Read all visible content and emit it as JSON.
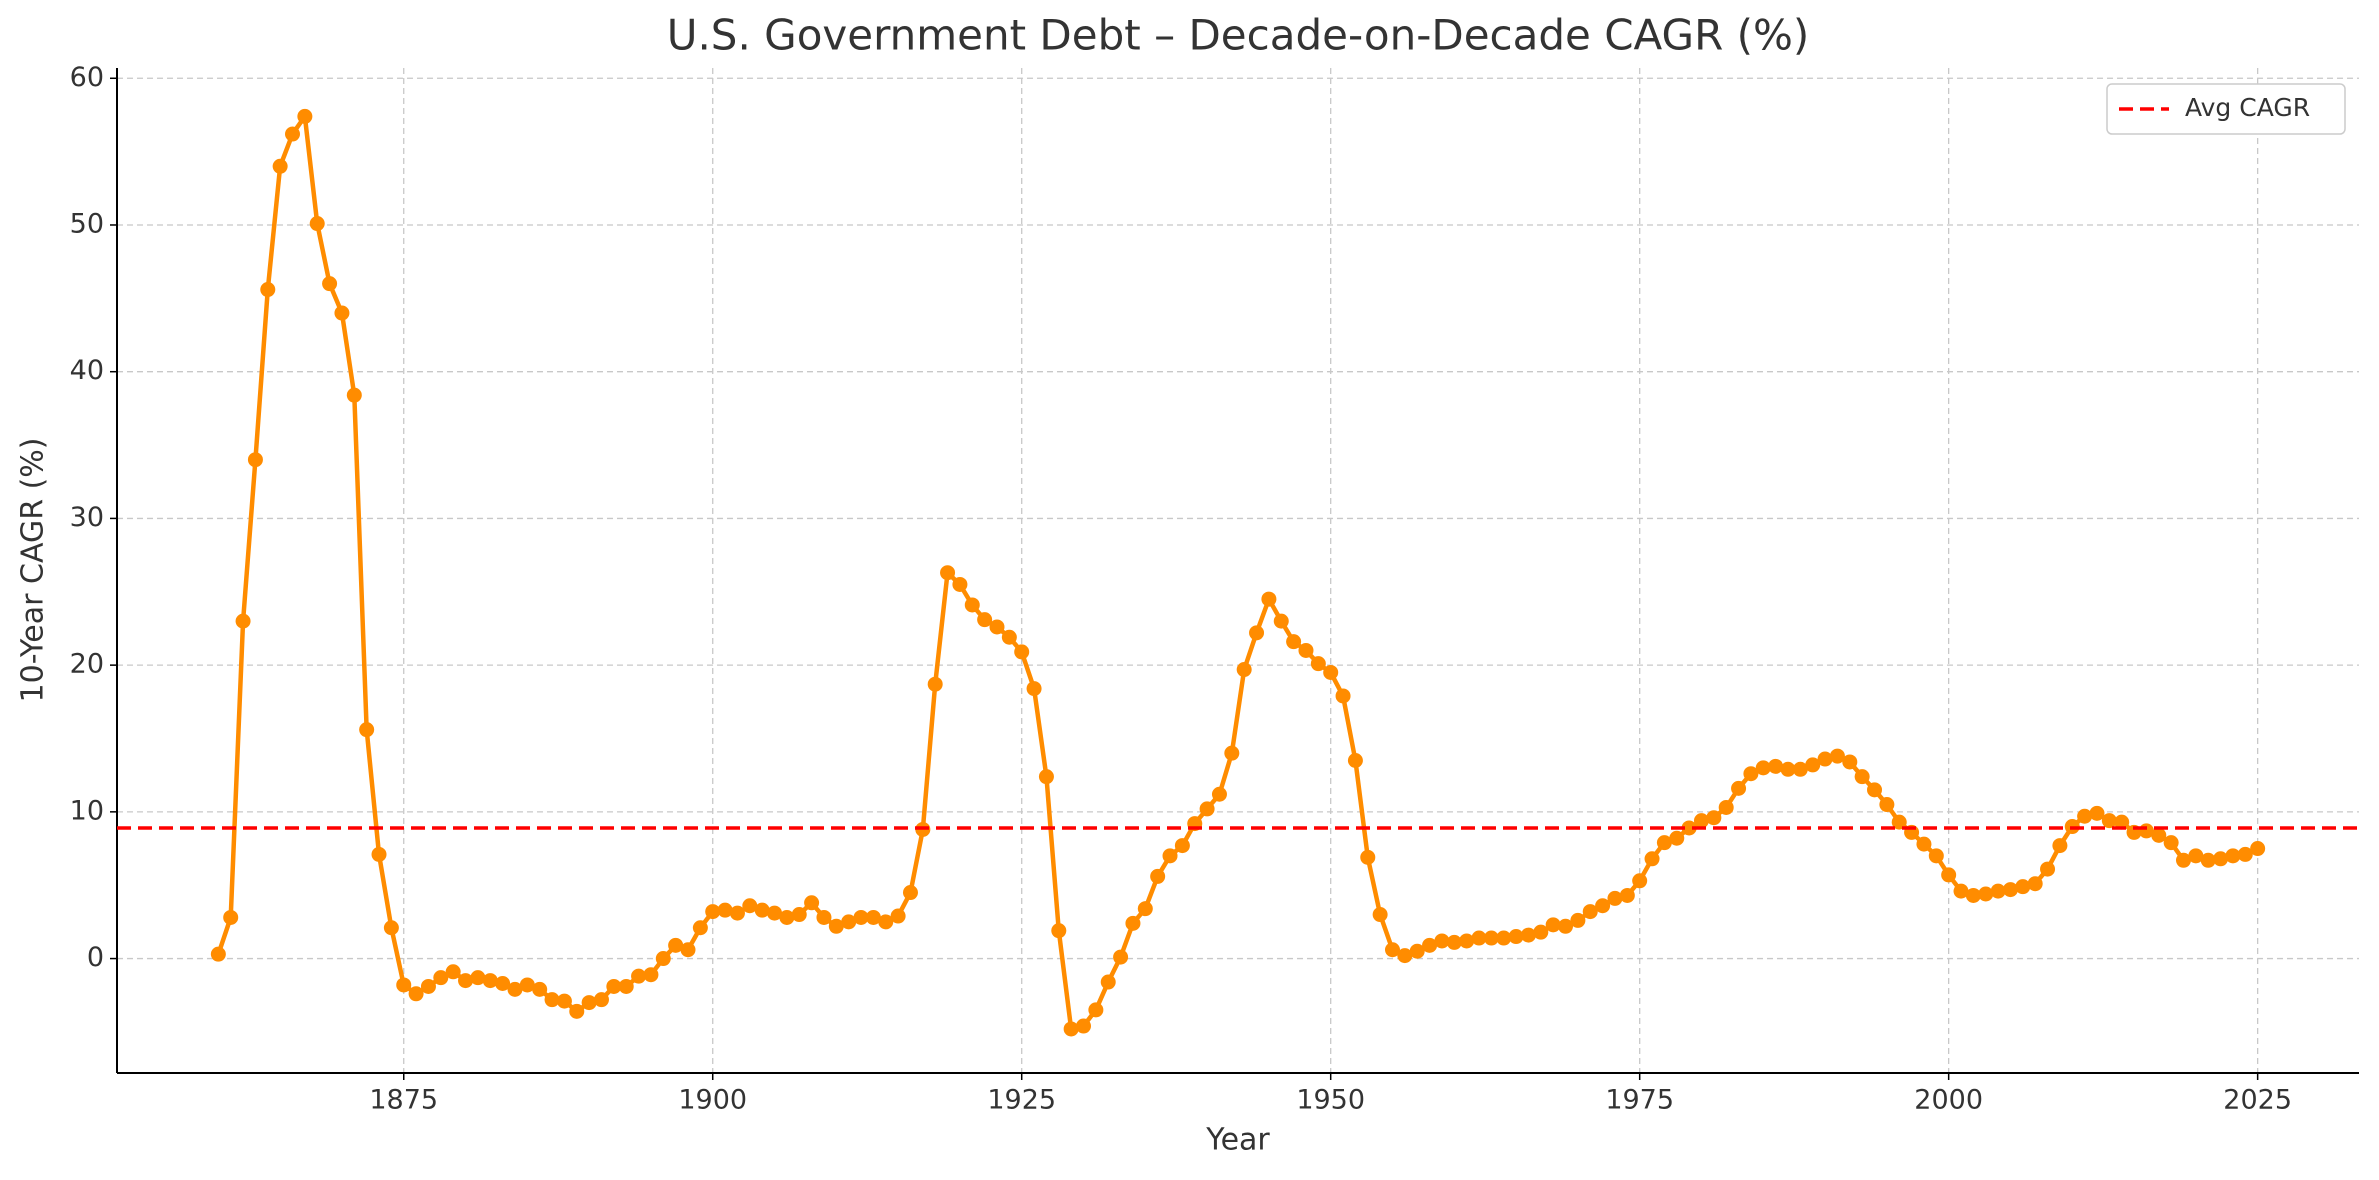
{
  "chart_data": {
    "type": "line",
    "title": "U.S. Government Debt – Decade-on-Decade CAGR (%)",
    "x_label": "Year",
    "y_label": "10-Year CAGR (%)",
    "x": [
      1860,
      1861,
      1862,
      1863,
      1864,
      1865,
      1866,
      1867,
      1868,
      1869,
      1870,
      1871,
      1872,
      1873,
      1874,
      1875,
      1876,
      1877,
      1878,
      1879,
      1880,
      1881,
      1882,
      1883,
      1884,
      1885,
      1886,
      1887,
      1888,
      1889,
      1890,
      1891,
      1892,
      1893,
      1894,
      1895,
      1896,
      1897,
      1898,
      1899,
      1900,
      1901,
      1902,
      1903,
      1904,
      1905,
      1906,
      1907,
      1908,
      1909,
      1910,
      1911,
      1912,
      1913,
      1914,
      1915,
      1916,
      1917,
      1918,
      1919,
      1920,
      1921,
      1922,
      1923,
      1924,
      1925,
      1926,
      1927,
      1928,
      1929,
      1930,
      1931,
      1932,
      1933,
      1934,
      1935,
      1936,
      1937,
      1938,
      1939,
      1940,
      1941,
      1942,
      1943,
      1944,
      1945,
      1946,
      1947,
      1948,
      1949,
      1950,
      1951,
      1952,
      1953,
      1954,
      1955,
      1956,
      1957,
      1958,
      1959,
      1960,
      1961,
      1962,
      1963,
      1964,
      1965,
      1966,
      1967,
      1968,
      1969,
      1970,
      1971,
      1972,
      1973,
      1974,
      1975,
      1976,
      1977,
      1978,
      1979,
      1980,
      1981,
      1982,
      1983,
      1984,
      1985,
      1986,
      1987,
      1988,
      1989,
      1990,
      1991,
      1992,
      1993,
      1994,
      1995,
      1996,
      1997,
      1998,
      1999,
      2000,
      2001,
      2002,
      2003,
      2004,
      2005,
      2006,
      2007,
      2008,
      2009,
      2010,
      2011,
      2012,
      2013,
      2014,
      2015,
      2016,
      2017,
      2018,
      2019,
      2020,
      2021,
      2022,
      2023,
      2024,
      2025
    ],
    "values": [
      0.3,
      2.8,
      23,
      34,
      45.6,
      54,
      56.2,
      57.4,
      50.1,
      46,
      44,
      38.4,
      15.6,
      7.1,
      2.1,
      -1.8,
      -2.4,
      -1.9,
      -1.3,
      -0.9,
      -1.5,
      -1.3,
      -1.5,
      -1.7,
      -2.1,
      -1.8,
      -2.1,
      -2.8,
      -2.9,
      -3.6,
      -3.0,
      -2.8,
      -1.9,
      -1.9,
      -1.2,
      -1.1,
      0,
      0.9,
      0.6,
      2.1,
      3.2,
      3.3,
      3.1,
      3.6,
      3.3,
      3.1,
      2.8,
      3.0,
      3.8,
      2.8,
      2.2,
      2.5,
      2.8,
      2.8,
      2.5,
      2.9,
      4.5,
      8.8,
      18.7,
      26.3,
      25.5,
      24.1,
      23.1,
      22.6,
      21.9,
      20.9,
      18.4,
      12.4,
      1.9,
      -4.8,
      -4.6,
      -3.5,
      -1.6,
      0.1,
      2.4,
      3.4,
      5.6,
      7.0,
      7.7,
      9.2,
      10.2,
      11.2,
      14.0,
      19.7,
      22.2,
      24.5,
      23.0,
      21.6,
      21.0,
      20.1,
      19.5,
      17.9,
      13.5,
      6.9,
      3.0,
      0.6,
      0.2,
      0.5,
      0.9,
      1.2,
      1.1,
      1.2,
      1.4,
      1.4,
      1.4,
      1.5,
      1.6,
      1.8,
      2.3,
      2.2,
      2.6,
      3.2,
      3.6,
      4.1,
      4.3,
      5.3,
      6.8,
      7.9,
      8.2,
      8.9,
      9.4,
      9.6,
      10.3,
      11.6,
      12.6,
      13.0,
      13.1,
      12.9,
      12.9,
      13.2,
      13.6,
      13.8,
      13.4,
      12.4,
      11.5,
      10.5,
      9.3,
      8.6,
      7.8,
      7.0,
      5.7,
      4.6,
      4.3,
      4.4,
      4.6,
      4.7,
      4.9,
      5.1,
      6.1,
      7.7,
      9.0,
      9.7,
      9.9,
      9.4,
      9.3,
      8.6,
      8.7,
      8.4,
      7.9,
      6.7,
      7.0,
      6.7,
      6.8,
      7.0,
      7.1,
      7.5
    ],
    "color": "#ff8c00",
    "hlines": [
      {
        "name": "Avg CAGR",
        "value": 8.9,
        "color": "#ff0000"
      }
    ],
    "xlim": [
      1851.8,
      2033.2
    ],
    "xticks": [
      1875,
      1900,
      1925,
      1950,
      1975,
      2000,
      2025
    ],
    "ylim": [
      -7.8,
      60.7
    ],
    "yticks": [
      0,
      10,
      20,
      30,
      40,
      50,
      60
    ],
    "grid": true,
    "legend": "upper right"
  }
}
